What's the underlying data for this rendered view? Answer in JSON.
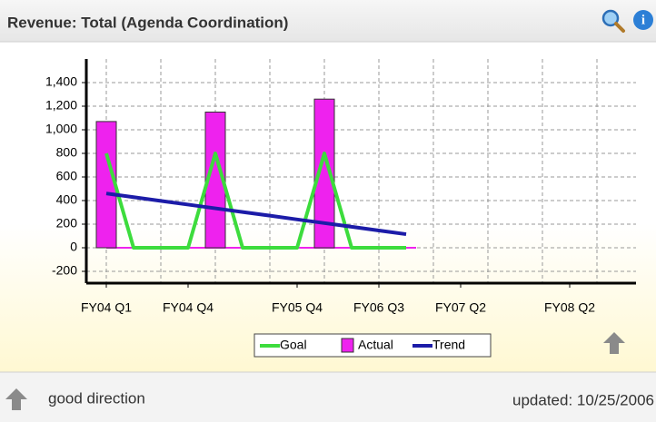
{
  "header": {
    "title": "Revenue: Total (Agenda Coordination)"
  },
  "chart_data": {
    "type": "line",
    "categories": [
      "FY04 Q1",
      null,
      null,
      "FY04 Q4",
      null,
      null,
      null,
      "FY05 Q4",
      null,
      null,
      "FY06 Q3",
      null,
      null,
      "FY07 Q2",
      null,
      null,
      null,
      "FY08 Q2",
      null,
      null
    ],
    "series": [
      {
        "name": "Goal",
        "color": "#3ddc3d",
        "kind": "line",
        "values": [
          800,
          0,
          0,
          0,
          800,
          0,
          0,
          0,
          800,
          0,
          0,
          0,
          null,
          null,
          null,
          null,
          null,
          null,
          null,
          null
        ]
      },
      {
        "name": "Actual",
        "color": "#ee22ee",
        "kind": "bar",
        "values": [
          1070,
          0,
          0,
          0,
          1150,
          0,
          0,
          0,
          1260,
          0,
          0,
          0,
          null,
          null,
          null,
          null,
          null,
          null,
          null,
          null
        ]
      },
      {
        "name": "Trend",
        "color": "#1c1ca8",
        "kind": "line",
        "values": [
          460,
          429,
          397,
          366,
          334,
          303,
          272,
          240,
          209,
          178,
          146,
          115,
          null,
          null,
          null,
          null,
          null,
          null,
          null,
          null
        ]
      }
    ],
    "ylim": [
      -300,
      1600
    ],
    "yticks": [
      -200,
      0,
      200,
      400,
      600,
      800,
      {
        "value": 1000,
        "label": "1,000"
      },
      {
        "value": 1200,
        "label": "1,200"
      },
      {
        "value": 1400,
        "label": "1,400"
      }
    ],
    "grid": true
  },
  "footer": {
    "direction": "good direction",
    "updated": "updated: 10/25/2006"
  }
}
